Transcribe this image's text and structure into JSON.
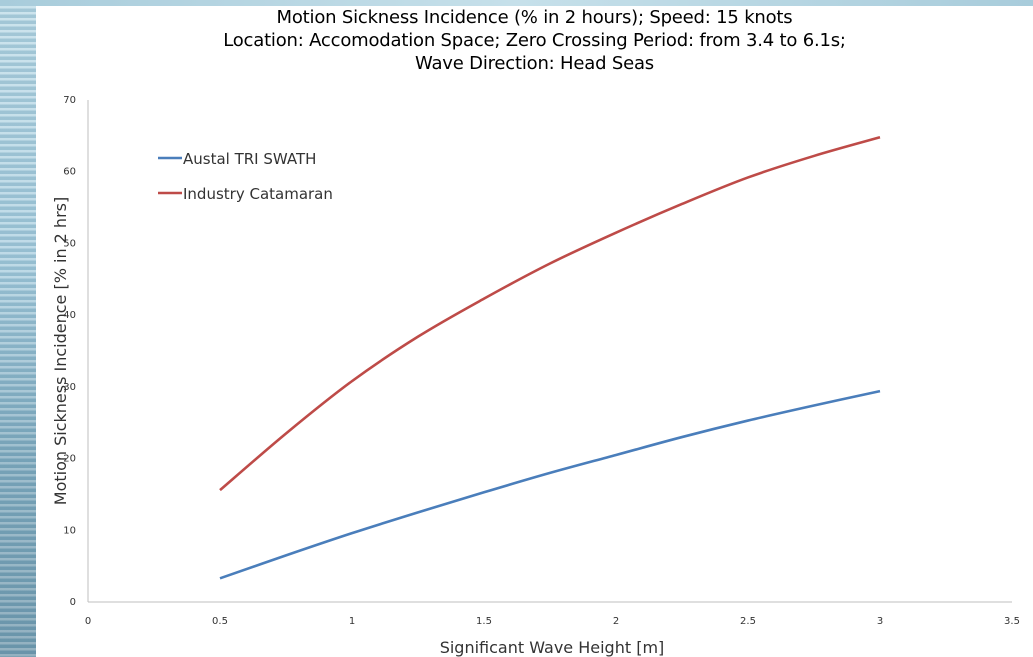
{
  "chart_data": {
    "type": "line",
    "title_lines": [
      "Motion Sickness Incidence (% in 2 hours); Speed: 15 knots",
      "Location: Accomodation Space; Zero Crossing Period: from 3.4 to 6.1s;",
      "Wave Direction: Head Seas"
    ],
    "xlabel": "Significant Wave Height [m]",
    "ylabel": "Motion Sickness Incidence [% in 2 hrs]",
    "xlim": [
      0,
      3.5
    ],
    "ylim": [
      0,
      70
    ],
    "x_ticks": [
      "0",
      "0.5",
      "1",
      "1.5",
      "2",
      "2.5",
      "3",
      "3.5"
    ],
    "y_ticks": [
      "0",
      "10",
      "20",
      "30",
      "40",
      "50",
      "60",
      "70"
    ],
    "grid": false,
    "legend_placement": "top-left",
    "series": [
      {
        "name": "Austal TRI SWATH",
        "color": "#4a7ebb",
        "x": [
          0.5,
          0.75,
          1.0,
          1.25,
          1.5,
          1.75,
          2.0,
          2.25,
          2.5,
          2.75,
          3.0
        ],
        "y": [
          3.3,
          6.5,
          9.6,
          12.5,
          15.3,
          18.0,
          20.5,
          23.0,
          25.3,
          27.4,
          29.4
        ]
      },
      {
        "name": "Industry Catamaran",
        "color": "#be4b48",
        "x": [
          0.5,
          0.75,
          1.0,
          1.25,
          1.5,
          1.75,
          2.0,
          2.25,
          2.5,
          2.75,
          3.0
        ],
        "y": [
          15.6,
          23.5,
          30.8,
          37.0,
          42.3,
          47.2,
          51.5,
          55.5,
          59.2,
          62.2,
          64.8
        ]
      }
    ]
  }
}
